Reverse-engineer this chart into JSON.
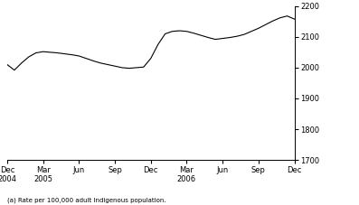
{
  "footnote": "(a) Rate per 100,000 adult Indigenous population.",
  "line_color": "#000000",
  "bg_color": "#ffffff",
  "ylim": [
    1700,
    2200
  ],
  "yticks": [
    1700,
    1800,
    1900,
    2000,
    2100,
    2200
  ],
  "x_tick_labels": [
    "Dec\n2004",
    "Mar\n2005",
    "Jun",
    "Sep",
    "Dec",
    "Mar\n2006",
    "Jun",
    "Sep",
    "Dec"
  ],
  "x_tick_positions": [
    0,
    3,
    6,
    9,
    12,
    15,
    18,
    21,
    24
  ],
  "values": [
    2010,
    1992,
    2015,
    2035,
    2048,
    2052,
    2050,
    2048,
    2045,
    2042,
    2038,
    2030,
    2022,
    2015,
    2010,
    2005,
    2000,
    1998,
    2000,
    2002,
    2030,
    2075,
    2110,
    2118,
    2120,
    2118,
    2112,
    2105,
    2098,
    2092,
    2095,
    2098,
    2102,
    2108,
    2118,
    2128,
    2140,
    2152,
    2162,
    2168,
    2158
  ],
  "linewidth": 0.8
}
